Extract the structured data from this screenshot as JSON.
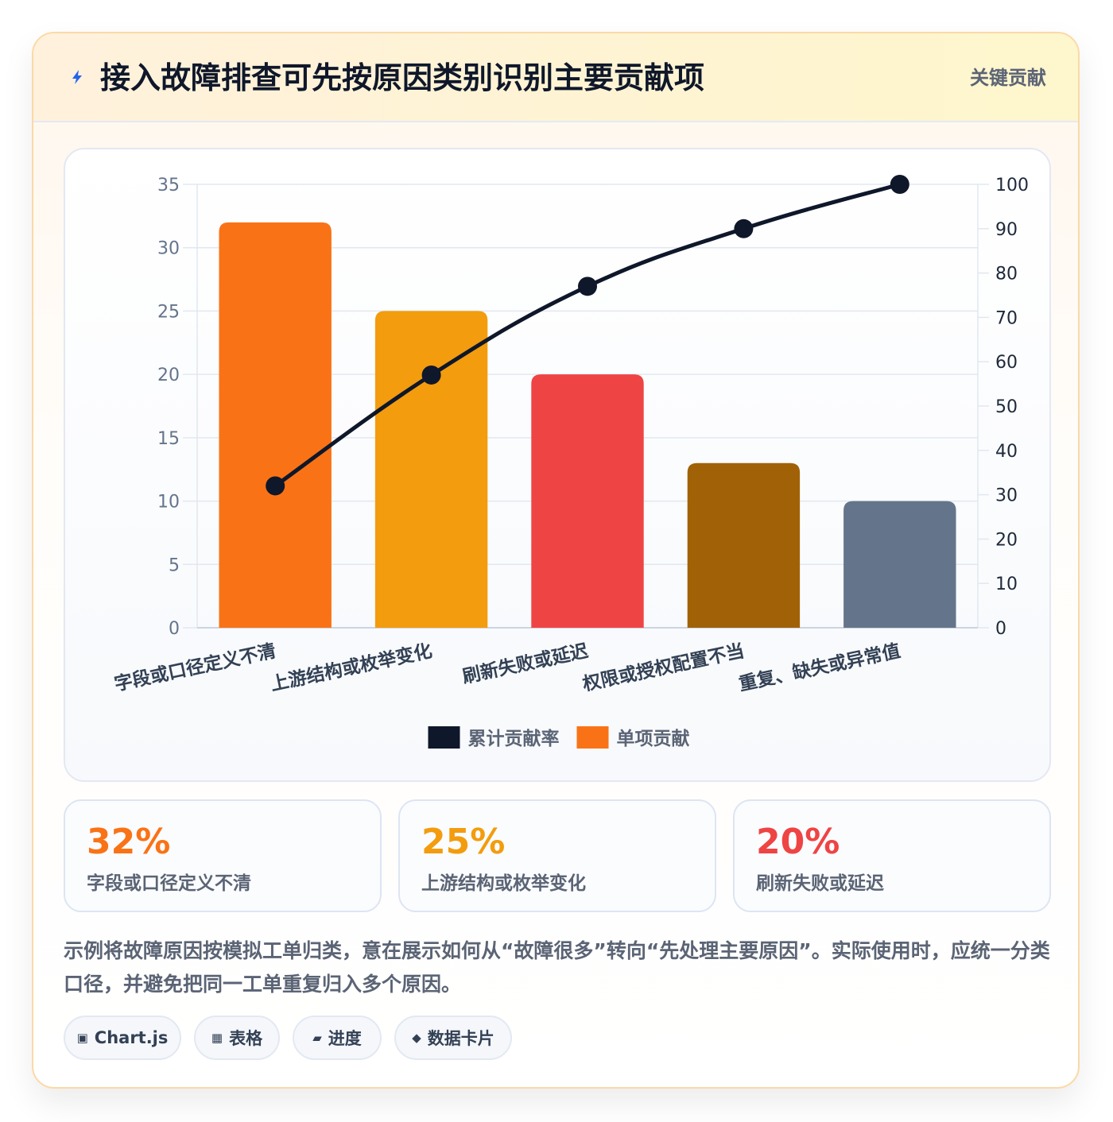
{
  "header": {
    "icon": "lightning-bolt-icon",
    "title": "接入故障排查可先按原因类别识别主要贡献项",
    "badge": "关键贡献"
  },
  "chart_data": {
    "type": "bar",
    "categories": [
      "字段或口径定义不清",
      "上游结构或枚举变化",
      "刷新失败或延迟",
      "权限或授权配置不当",
      "重复、缺失或异常值"
    ],
    "series": [
      {
        "name": "单项贡献",
        "type": "bar",
        "axis": "left",
        "values": [
          32,
          25,
          20,
          13,
          10
        ],
        "colors": [
          "#f97316",
          "#f39c0e",
          "#ef4444",
          "#a16207",
          "#64748b"
        ]
      },
      {
        "name": "累计贡献率",
        "type": "line",
        "axis": "right",
        "values": [
          32,
          57,
          77,
          90,
          100
        ],
        "color": "#0f172a"
      }
    ],
    "ylim_left": [
      0,
      35
    ],
    "yticks_left": [
      0,
      5,
      10,
      15,
      20,
      25,
      30,
      35
    ],
    "ylim_right": [
      0,
      100
    ],
    "yticks_right": [
      0,
      10,
      20,
      30,
      40,
      50,
      60,
      70,
      80,
      90,
      100
    ],
    "grid": true,
    "legend": "bottom",
    "legend_items": [
      {
        "label": "累计贡献率",
        "color": "#0f172a"
      },
      {
        "label": "单项贡献",
        "color": "#f97316"
      }
    ]
  },
  "stats": [
    {
      "value": "32%",
      "label": "字段或口径定义不清",
      "color": "#f97316"
    },
    {
      "value": "25%",
      "label": "上游结构或枚举变化",
      "color": "#f39c0e"
    },
    {
      "value": "20%",
      "label": "刷新失败或延迟",
      "color": "#ef4444"
    }
  ],
  "note": "示例将故障原因按模拟工单归类，意在展示如何从“故障很多”转向“先处理主要原因”。实际使用时，应统一分类口径，并避免把同一工单重复归入多个原因。",
  "tags": [
    {
      "icon": "▣",
      "label": "Chart.js"
    },
    {
      "icon": "▦",
      "label": "表格"
    },
    {
      "icon": "▰",
      "label": "进度"
    },
    {
      "icon": "◆",
      "label": "数据卡片"
    }
  ]
}
